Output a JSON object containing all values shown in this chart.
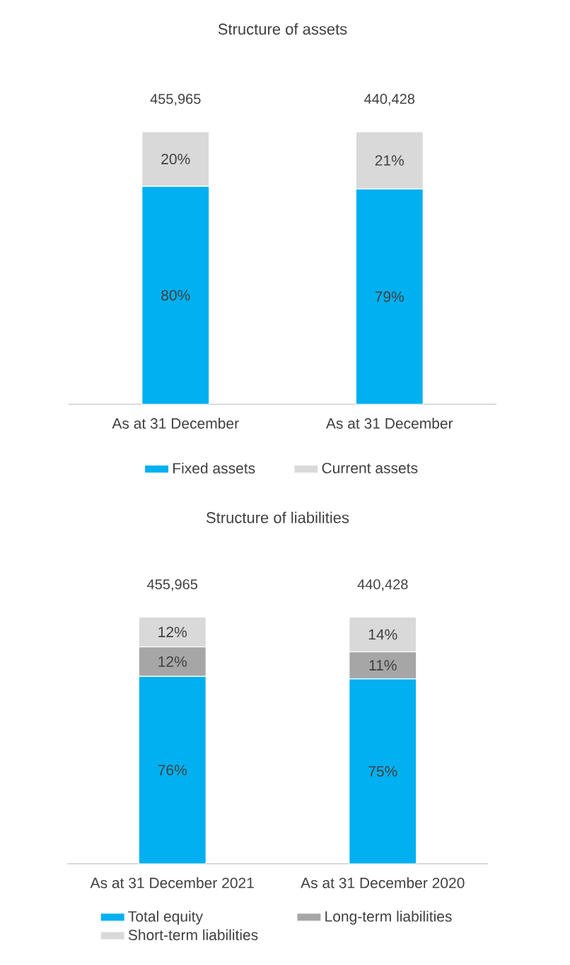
{
  "chart_data": [
    {
      "type": "bar",
      "title": "Structure  of assets",
      "categories": [
        "As at 31 December",
        "As at 31 December"
      ],
      "stacked": true,
      "legend": "bottom",
      "annotations": [
        "455,965",
        "440,428"
      ],
      "series": [
        {
          "name": "Fixed assets",
          "color": "#00b0f0",
          "values": [
            80,
            79
          ],
          "value_labels": [
            "80%",
            "79%"
          ]
        },
        {
          "name": "Current assets",
          "color": "#d9d9d9",
          "values": [
            20,
            21
          ],
          "value_labels": [
            "20%",
            "21%"
          ]
        }
      ]
    },
    {
      "type": "bar",
      "title": "Structure  of liabilities",
      "categories": [
        "As at 31 December 2021",
        "As at 31 December 2020"
      ],
      "stacked": true,
      "legend": "bottom",
      "annotations": [
        "455,965",
        "440,428"
      ],
      "series": [
        {
          "name": "Total equity",
          "color": "#00b0f0",
          "values": [
            76,
            75
          ],
          "value_labels": [
            "76%",
            "75%"
          ]
        },
        {
          "name": "Long-term liabilities",
          "color": "#a6a6a6",
          "values": [
            12,
            11
          ],
          "value_labels": [
            "12%",
            "11%"
          ]
        },
        {
          "name": "Short-term liabilities",
          "color": "#d9d9d9",
          "values": [
            12,
            14
          ],
          "value_labels": [
            "12%",
            "14%"
          ]
        }
      ]
    }
  ]
}
